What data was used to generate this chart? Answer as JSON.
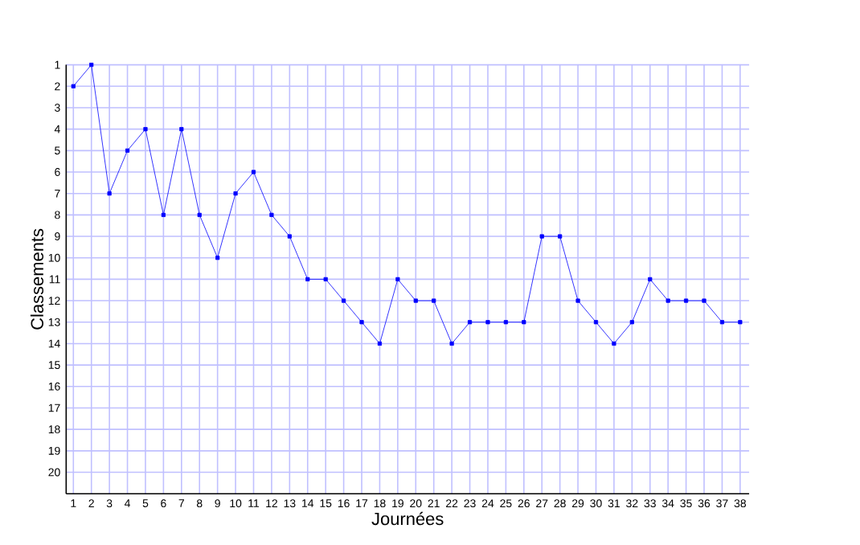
{
  "chart_data": {
    "type": "line",
    "xlabel": "Journées",
    "ylabel": "Classements",
    "x": [
      1,
      2,
      3,
      4,
      5,
      6,
      7,
      8,
      9,
      10,
      11,
      12,
      13,
      14,
      15,
      16,
      17,
      18,
      19,
      20,
      21,
      22,
      23,
      24,
      25,
      26,
      27,
      28,
      29,
      30,
      31,
      32,
      33,
      34,
      35,
      36,
      37,
      38
    ],
    "values": [
      2,
      1,
      7,
      5,
      4,
      8,
      4,
      8,
      10,
      7,
      6,
      8,
      9,
      11,
      11,
      12,
      13,
      14,
      11,
      12,
      12,
      14,
      13,
      13,
      13,
      13,
      9,
      9,
      12,
      13,
      14,
      13,
      11,
      12,
      12,
      12,
      13,
      13
    ],
    "color": "#0000ff",
    "marker": "square",
    "line_style": "solid",
    "grid": true,
    "xlim": [
      0.6,
      38.5
    ],
    "ylim": [
      21,
      1
    ],
    "xticks": [
      1,
      2,
      3,
      4,
      5,
      6,
      7,
      8,
      9,
      10,
      11,
      12,
      13,
      14,
      15,
      16,
      17,
      18,
      19,
      20,
      21,
      22,
      23,
      24,
      25,
      26,
      27,
      28,
      29,
      30,
      31,
      32,
      33,
      34,
      35,
      36,
      37,
      38
    ],
    "yticks": [
      1,
      2,
      3,
      4,
      5,
      6,
      7,
      8,
      9,
      10,
      11,
      12,
      13,
      14,
      15,
      16,
      17,
      18,
      19,
      20
    ]
  }
}
